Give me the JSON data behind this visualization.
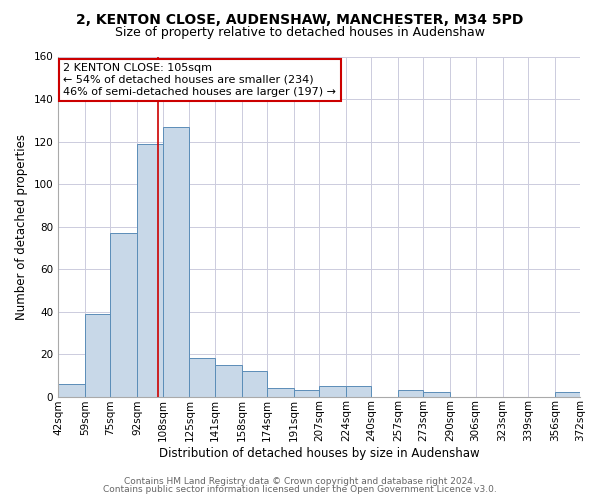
{
  "title": "2, KENTON CLOSE, AUDENSHAW, MANCHESTER, M34 5PD",
  "subtitle": "Size of property relative to detached houses in Audenshaw",
  "xlabel": "Distribution of detached houses by size in Audenshaw",
  "ylabel": "Number of detached properties",
  "bins": [
    42,
    59,
    75,
    92,
    108,
    125,
    141,
    158,
    174,
    191,
    207,
    224,
    240,
    257,
    273,
    290,
    306,
    323,
    339,
    356,
    372
  ],
  "counts": [
    6,
    39,
    77,
    119,
    127,
    18,
    15,
    12,
    4,
    3,
    5,
    5,
    0,
    3,
    2,
    0,
    0,
    0,
    0,
    2
  ],
  "bar_color": "#c8d8e8",
  "bar_edge_color": "#5b8db8",
  "ref_line_x": 105,
  "ref_line_color": "#cc0000",
  "annotation_title": "2 KENTON CLOSE: 105sqm",
  "annotation_line1": "← 54% of detached houses are smaller (234)",
  "annotation_line2": "46% of semi-detached houses are larger (197) →",
  "annotation_box_color": "#ffffff",
  "annotation_box_edge": "#cc0000",
  "ylim": [
    0,
    160
  ],
  "yticks": [
    0,
    20,
    40,
    60,
    80,
    100,
    120,
    140,
    160
  ],
  "tick_labels": [
    "42sqm",
    "59sqm",
    "75sqm",
    "92sqm",
    "108sqm",
    "125sqm",
    "141sqm",
    "158sqm",
    "174sqm",
    "191sqm",
    "207sqm",
    "224sqm",
    "240sqm",
    "257sqm",
    "273sqm",
    "290sqm",
    "306sqm",
    "323sqm",
    "339sqm",
    "356sqm",
    "372sqm"
  ],
  "footer1": "Contains HM Land Registry data © Crown copyright and database right 2024.",
  "footer2": "Contains public sector information licensed under the Open Government Licence v3.0.",
  "bg_color": "#ffffff",
  "grid_color": "#ccccdd",
  "title_fontsize": 10,
  "subtitle_fontsize": 9,
  "axis_label_fontsize": 8.5,
  "tick_fontsize": 7.5,
  "footer_fontsize": 6.5
}
